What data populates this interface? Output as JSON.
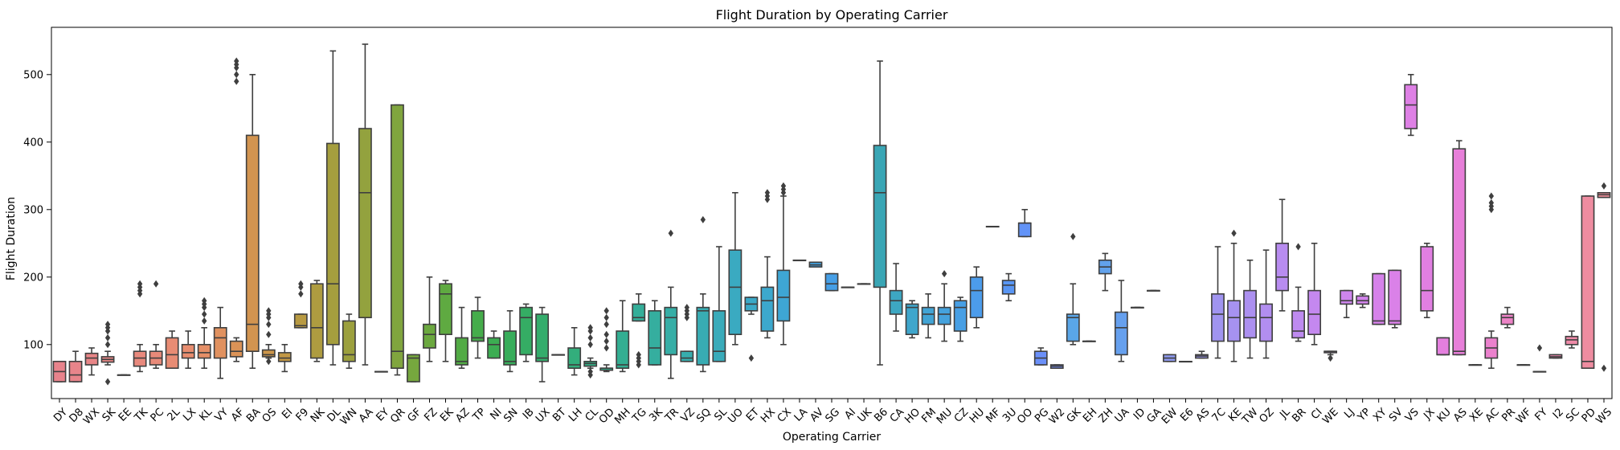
{
  "chart_data": {
    "type": "box",
    "title": "Flight Duration by Operating Carrier",
    "xlabel": "Operating Carrier",
    "ylabel": "Flight Duration",
    "ylim": [
      20,
      570
    ],
    "yticks": [
      100,
      200,
      300,
      400,
      500
    ],
    "grid": false,
    "legend": "none",
    "boxes": [
      {
        "cat": "DY",
        "min": 45,
        "q1": 45,
        "med": 60,
        "q3": 75,
        "max": 75,
        "fliers": [],
        "color": "#e8838c"
      },
      {
        "cat": "D8",
        "min": 45,
        "q1": 45,
        "med": 55,
        "q3": 75,
        "max": 90,
        "fliers": [],
        "color": "#e8848a"
      },
      {
        "cat": "WX",
        "min": 55,
        "q1": 70,
        "med": 80,
        "q3": 87,
        "max": 95,
        "fliers": [],
        "color": "#e88587"
      },
      {
        "cat": "SK",
        "min": 70,
        "q1": 74,
        "med": 78,
        "q3": 82,
        "max": 90,
        "fliers": [
          45,
          100,
          110,
          120,
          125,
          130
        ],
        "color": "#e88684"
      },
      {
        "cat": "EE",
        "min": 55,
        "q1": 55,
        "med": 55,
        "q3": 55,
        "max": 55,
        "fliers": [],
        "color": "#e88881"
      },
      {
        "cat": "TK",
        "min": 60,
        "q1": 68,
        "med": 80,
        "q3": 90,
        "max": 100,
        "fliers": [
          175,
          180,
          185,
          190
        ],
        "color": "#e8897d"
      },
      {
        "cat": "PC",
        "min": 65,
        "q1": 70,
        "med": 80,
        "q3": 90,
        "max": 100,
        "fliers": [
          190
        ],
        "color": "#e88a79"
      },
      {
        "cat": "2L",
        "min": 65,
        "q1": 65,
        "med": 85,
        "q3": 110,
        "max": 120,
        "fliers": [],
        "color": "#e88c74"
      },
      {
        "cat": "LX",
        "min": 65,
        "q1": 80,
        "med": 88,
        "q3": 100,
        "max": 120,
        "fliers": [],
        "color": "#e88d6f"
      },
      {
        "cat": "KL",
        "min": 65,
        "q1": 80,
        "med": 88,
        "q3": 100,
        "max": 125,
        "fliers": [
          135,
          145,
          155,
          160,
          165
        ],
        "color": "#e58f67"
      },
      {
        "cat": "VY",
        "min": 50,
        "q1": 80,
        "med": 110,
        "q3": 125,
        "max": 155,
        "fliers": [],
        "color": "#e0915f"
      },
      {
        "cat": "AF",
        "min": 75,
        "q1": 82,
        "med": 90,
        "q3": 105,
        "max": 110,
        "fliers": [
          490,
          500,
          510,
          515,
          520
        ],
        "color": "#db9357"
      },
      {
        "cat": "BA",
        "min": 65,
        "q1": 90,
        "med": 130,
        "q3": 410,
        "max": 500,
        "fliers": [],
        "color": "#d29450"
      },
      {
        "cat": "OS",
        "min": 80,
        "q1": 82,
        "med": 85,
        "q3": 92,
        "max": 100,
        "fliers": [
          75,
          115,
          130,
          140,
          145,
          150
        ],
        "color": "#cc964b"
      },
      {
        "cat": "EI",
        "min": 60,
        "q1": 75,
        "med": 80,
        "q3": 88,
        "max": 100,
        "fliers": [],
        "color": "#c29845"
      },
      {
        "cat": "F9",
        "min": 125,
        "q1": 125,
        "med": 128,
        "q3": 145,
        "max": 145,
        "fliers": [
          175,
          185,
          190
        ],
        "color": "#b89a42"
      },
      {
        "cat": "NK",
        "min": 75,
        "q1": 80,
        "med": 125,
        "q3": 190,
        "max": 195,
        "fliers": [],
        "color": "#ae9c40"
      },
      {
        "cat": "DL",
        "min": 70,
        "q1": 100,
        "med": 190,
        "q3": 398,
        "max": 535,
        "fliers": [],
        "color": "#a59e3e"
      },
      {
        "cat": "WN",
        "min": 65,
        "q1": 75,
        "med": 85,
        "q3": 135,
        "max": 145,
        "fliers": [],
        "color": "#9ca03e"
      },
      {
        "cat": "AA",
        "min": 70,
        "q1": 140,
        "med": 325,
        "q3": 420,
        "max": 545,
        "fliers": [],
        "color": "#93a23e"
      },
      {
        "cat": "EY",
        "min": 60,
        "q1": 60,
        "med": 60,
        "q3": 60,
        "max": 60,
        "fliers": [],
        "color": "#8aa43e"
      },
      {
        "cat": "QR",
        "min": 55,
        "q1": 65,
        "med": 90,
        "q3": 455,
        "max": 455,
        "fliers": [],
        "color": "#80a53e"
      },
      {
        "cat": "GF",
        "min": 45,
        "q1": 45,
        "med": 80,
        "q3": 85,
        "max": 85,
        "fliers": [],
        "color": "#76a73e"
      },
      {
        "cat": "FZ",
        "min": 75,
        "q1": 95,
        "med": 115,
        "q3": 130,
        "max": 200,
        "fliers": [],
        "color": "#6ba83f"
      },
      {
        "cat": "EK",
        "min": 75,
        "q1": 115,
        "med": 175,
        "q3": 190,
        "max": 195,
        "fliers": [],
        "color": "#5faa41"
      },
      {
        "cat": "AZ",
        "min": 65,
        "q1": 70,
        "med": 75,
        "q3": 110,
        "max": 155,
        "fliers": [],
        "color": "#52ab45"
      },
      {
        "cat": "TP",
        "min": 80,
        "q1": 105,
        "med": 110,
        "q3": 150,
        "max": 170,
        "fliers": [],
        "color": "#45ac4b"
      },
      {
        "cat": "NI",
        "min": 80,
        "q1": 80,
        "med": 100,
        "q3": 110,
        "max": 120,
        "fliers": [],
        "color": "#3cad52"
      },
      {
        "cat": "SN",
        "min": 60,
        "q1": 70,
        "med": 75,
        "q3": 120,
        "max": 150,
        "fliers": [],
        "color": "#38ad5b"
      },
      {
        "cat": "IB",
        "min": 75,
        "q1": 85,
        "med": 140,
        "q3": 155,
        "max": 160,
        "fliers": [],
        "color": "#35ad64"
      },
      {
        "cat": "UX",
        "min": 45,
        "q1": 75,
        "med": 80,
        "q3": 145,
        "max": 155,
        "fliers": [],
        "color": "#34ad6c"
      },
      {
        "cat": "BT",
        "min": 85,
        "q1": 85,
        "med": 85,
        "q3": 85,
        "max": 85,
        "fliers": [],
        "color": "#33ad74"
      },
      {
        "cat": "LH",
        "min": 55,
        "q1": 65,
        "med": 70,
        "q3": 95,
        "max": 125,
        "fliers": [],
        "color": "#33ae7c"
      },
      {
        "cat": "CL",
        "min": 65,
        "q1": 68,
        "med": 72,
        "q3": 75,
        "max": 80,
        "fliers": [
          55,
          60,
          100,
          110,
          120,
          125
        ],
        "color": "#33ae84"
      },
      {
        "cat": "OD",
        "min": 60,
        "q1": 62,
        "med": 65,
        "q3": 65,
        "max": 70,
        "fliers": [
          95,
          105,
          115,
          130,
          140,
          150
        ],
        "color": "#33ae8b"
      },
      {
        "cat": "MH",
        "min": 60,
        "q1": 65,
        "med": 70,
        "q3": 120,
        "max": 165,
        "fliers": [],
        "color": "#33ae92"
      },
      {
        "cat": "TG",
        "min": 135,
        "q1": 135,
        "med": 140,
        "q3": 160,
        "max": 175,
        "fliers": [
          70,
          75,
          80,
          85
        ],
        "color": "#34ae99"
      },
      {
        "cat": "3K",
        "min": 70,
        "q1": 70,
        "med": 95,
        "q3": 150,
        "max": 165,
        "fliers": [],
        "color": "#35ae9f"
      },
      {
        "cat": "TR",
        "min": 50,
        "q1": 85,
        "med": 140,
        "q3": 155,
        "max": 185,
        "fliers": [
          265
        ],
        "color": "#36aea6"
      },
      {
        "cat": "VZ",
        "min": 75,
        "q1": 75,
        "med": 80,
        "q3": 90,
        "max": 90,
        "fliers": [
          140,
          145,
          150,
          155
        ],
        "color": "#37adad"
      },
      {
        "cat": "SQ",
        "min": 60,
        "q1": 70,
        "med": 150,
        "q3": 155,
        "max": 175,
        "fliers": [
          285
        ],
        "color": "#38acb3"
      },
      {
        "cat": "SL",
        "min": 75,
        "q1": 75,
        "med": 90,
        "q3": 150,
        "max": 245,
        "fliers": [],
        "color": "#39abba"
      },
      {
        "cat": "UO",
        "min": 100,
        "q1": 115,
        "med": 185,
        "q3": 240,
        "max": 325,
        "fliers": [],
        "color": "#3aaac1"
      },
      {
        "cat": "ET",
        "min": 145,
        "q1": 150,
        "med": 160,
        "q3": 170,
        "max": 170,
        "fliers": [
          80
        ],
        "color": "#3ba9c7"
      },
      {
        "cat": "HX",
        "min": 110,
        "q1": 120,
        "med": 165,
        "q3": 185,
        "max": 230,
        "fliers": [
          315,
          320,
          325
        ],
        "color": "#3ca8cd"
      },
      {
        "cat": "CX",
        "min": 100,
        "q1": 135,
        "med": 170,
        "q3": 210,
        "max": 320,
        "fliers": [
          325,
          330,
          335
        ],
        "color": "#3ea6d4"
      },
      {
        "cat": "LA",
        "min": 225,
        "q1": 225,
        "med": 225,
        "q3": 225,
        "max": 225,
        "fliers": [],
        "color": "#40a4da"
      },
      {
        "cat": "AV",
        "min": 215,
        "q1": 215,
        "med": 218,
        "q3": 222,
        "max": 222,
        "fliers": [],
        "color": "#43a2e0"
      },
      {
        "cat": "SG",
        "min": 180,
        "q1": 180,
        "med": 190,
        "q3": 205,
        "max": 205,
        "fliers": [],
        "color": "#469fe6"
      },
      {
        "cat": "AI",
        "min": 185,
        "q1": 185,
        "med": 185,
        "q3": 185,
        "max": 185,
        "fliers": [],
        "color": "#4a9ceb"
      },
      {
        "cat": "UK",
        "min": 190,
        "q1": 190,
        "med": 190,
        "q3": 190,
        "max": 190,
        "fliers": [],
        "color": "#4e99f0"
      },
      {
        "cat": "B6",
        "min": 70,
        "q1": 185,
        "med": 325,
        "q3": 395,
        "max": 520,
        "fliers": [],
        "color": "#3aa6b5"
      },
      {
        "cat": "CA",
        "min": 120,
        "q1": 145,
        "med": 165,
        "q3": 180,
        "max": 220,
        "fliers": [],
        "color": "#3da7c2"
      },
      {
        "cat": "HO",
        "min": 110,
        "q1": 115,
        "med": 155,
        "q3": 160,
        "max": 165,
        "fliers": [],
        "color": "#3fa6cc"
      },
      {
        "cat": "FM",
        "min": 110,
        "q1": 130,
        "med": 145,
        "q3": 155,
        "max": 175,
        "fliers": [],
        "color": "#42a4d5"
      },
      {
        "cat": "MU",
        "min": 105,
        "q1": 130,
        "med": 145,
        "q3": 155,
        "max": 190,
        "fliers": [
          205
        ],
        "color": "#45a2dd"
      },
      {
        "cat": "CZ",
        "min": 105,
        "q1": 120,
        "med": 155,
        "q3": 165,
        "max": 170,
        "fliers": [],
        "color": "#489fe4"
      },
      {
        "cat": "HU",
        "min": 125,
        "q1": 140,
        "med": 180,
        "q3": 200,
        "max": 215,
        "fliers": [],
        "color": "#4c9ceb"
      },
      {
        "cat": "MF",
        "min": 275,
        "q1": 275,
        "med": 275,
        "q3": 275,
        "max": 275,
        "fliers": [],
        "color": "#5199f0"
      },
      {
        "cat": "3U",
        "min": 165,
        "q1": 175,
        "med": 188,
        "q3": 195,
        "max": 205,
        "fliers": [],
        "color": "#5996f4"
      },
      {
        "cat": "OO",
        "min": 260,
        "q1": 260,
        "med": 280,
        "q3": 280,
        "max": 300,
        "fliers": [],
        "color": "#6293f7"
      },
      {
        "cat": "PG",
        "min": 70,
        "q1": 70,
        "med": 80,
        "q3": 90,
        "max": 95,
        "fliers": [],
        "color": "#6b90f9"
      },
      {
        "cat": "W2",
        "min": 65,
        "q1": 65,
        "med": 68,
        "q3": 70,
        "max": 70,
        "fliers": [],
        "color": "#758dfa"
      },
      {
        "cat": "GK",
        "min": 100,
        "q1": 105,
        "med": 140,
        "q3": 145,
        "max": 190,
        "fliers": [
          260
        ],
        "color": "#5aa6e8"
      },
      {
        "cat": "EH",
        "min": 105,
        "q1": 105,
        "med": 105,
        "q3": 105,
        "max": 105,
        "fliers": [],
        "color": "#5ea4ea"
      },
      {
        "cat": "ZH",
        "min": 180,
        "q1": 205,
        "med": 215,
        "q3": 225,
        "max": 235,
        "fliers": [],
        "color": "#62a2ec"
      },
      {
        "cat": "UA",
        "min": 75,
        "q1": 85,
        "med": 125,
        "q3": 148,
        "max": 195,
        "fliers": [],
        "color": "#66a0ee"
      },
      {
        "cat": "ID",
        "min": 155,
        "q1": 155,
        "med": 155,
        "q3": 155,
        "max": 155,
        "fliers": [],
        "color": "#6b9ef0"
      },
      {
        "cat": "GA",
        "min": 180,
        "q1": 180,
        "med": 180,
        "q3": 180,
        "max": 180,
        "fliers": [],
        "color": "#709cf1"
      },
      {
        "cat": "EW",
        "min": 75,
        "q1": 75,
        "med": 80,
        "q3": 85,
        "max": 85,
        "fliers": [],
        "color": "#8f9af0"
      },
      {
        "cat": "E6",
        "min": 75,
        "q1": 75,
        "med": 75,
        "q3": 75,
        "max": 75,
        "fliers": [],
        "color": "#9498f0"
      },
      {
        "cat": "AS",
        "min": 80,
        "q1": 80,
        "med": 83,
        "q3": 85,
        "max": 90,
        "fliers": [],
        "color": "#9a96f0"
      },
      {
        "cat": "7C",
        "min": 80,
        "q1": 105,
        "med": 145,
        "q3": 175,
        "max": 245,
        "fliers": [],
        "color": "#a094f0"
      },
      {
        "cat": "KE",
        "min": 75,
        "q1": 105,
        "med": 140,
        "q3": 165,
        "max": 250,
        "fliers": [
          265
        ],
        "color": "#a692f0"
      },
      {
        "cat": "TW",
        "min": 80,
        "q1": 110,
        "med": 140,
        "q3": 180,
        "max": 225,
        "fliers": [],
        "color": "#ac90f0"
      },
      {
        "cat": "OZ",
        "min": 80,
        "q1": 105,
        "med": 140,
        "q3": 160,
        "max": 240,
        "fliers": [],
        "color": "#b28ef0"
      },
      {
        "cat": "JL",
        "min": 150,
        "q1": 180,
        "med": 200,
        "q3": 250,
        "max": 315,
        "fliers": [],
        "color": "#b88cf0"
      },
      {
        "cat": "BR",
        "min": 105,
        "q1": 110,
        "med": 120,
        "q3": 150,
        "max": 185,
        "fliers": [
          245
        ],
        "color": "#be8af0"
      },
      {
        "cat": "CI",
        "min": 100,
        "q1": 115,
        "med": 145,
        "q3": 180,
        "max": 250,
        "fliers": [],
        "color": "#c488ef"
      },
      {
        "cat": "WE",
        "min": 85,
        "q1": 88,
        "med": 90,
        "q3": 90,
        "max": 90,
        "fliers": [
          80
        ],
        "color": "#c986ee"
      },
      {
        "cat": "LJ",
        "min": 140,
        "q1": 160,
        "med": 165,
        "q3": 180,
        "max": 180,
        "fliers": [],
        "color": "#ce85ed"
      },
      {
        "cat": "YP",
        "min": 155,
        "q1": 160,
        "med": 165,
        "q3": 172,
        "max": 175,
        "fliers": [],
        "color": "#d283ec"
      },
      {
        "cat": "XY",
        "min": 130,
        "q1": 130,
        "med": 135,
        "q3": 205,
        "max": 205,
        "fliers": [],
        "color": "#d682ea"
      },
      {
        "cat": "SV",
        "min": 125,
        "q1": 130,
        "med": 135,
        "q3": 210,
        "max": 210,
        "fliers": [],
        "color": "#da81e8"
      },
      {
        "cat": "VS",
        "min": 410,
        "q1": 420,
        "med": 455,
        "q3": 485,
        "max": 500,
        "fliers": [],
        "color": "#de80e5"
      },
      {
        "cat": "JX",
        "min": 140,
        "q1": 150,
        "med": 180,
        "q3": 245,
        "max": 250,
        "fliers": [],
        "color": "#e17fe2"
      },
      {
        "cat": "KU",
        "min": 85,
        "q1": 85,
        "med": 85,
        "q3": 110,
        "max": 110,
        "fliers": [],
        "color": "#e47fde"
      },
      {
        "cat": "AS",
        "min": 85,
        "q1": 85,
        "med": 90,
        "q3": 390,
        "max": 402,
        "fliers": [],
        "color": "#e77fd9"
      },
      {
        "cat": "XE",
        "min": 70,
        "q1": 70,
        "med": 70,
        "q3": 70,
        "max": 70,
        "fliers": [],
        "color": "#e980d3"
      },
      {
        "cat": "AC",
        "min": 65,
        "q1": 80,
        "med": 95,
        "q3": 110,
        "max": 120,
        "fliers": [
          300,
          305,
          310,
          320
        ],
        "color": "#eb81cd"
      },
      {
        "cat": "PR",
        "min": 125,
        "q1": 130,
        "med": 140,
        "q3": 145,
        "max": 155,
        "fliers": [],
        "color": "#ec83c6"
      },
      {
        "cat": "WF",
        "min": 70,
        "q1": 70,
        "med": 70,
        "q3": 70,
        "max": 70,
        "fliers": [],
        "color": "#ed84bf"
      },
      {
        "cat": "FY",
        "min": 60,
        "q1": 60,
        "med": 60,
        "q3": 60,
        "max": 60,
        "fliers": [
          95
        ],
        "color": "#ee86b8"
      },
      {
        "cat": "I2",
        "min": 80,
        "q1": 80,
        "med": 82,
        "q3": 85,
        "max": 85,
        "fliers": [],
        "color": "#ee88b0"
      },
      {
        "cat": "SC",
        "min": 95,
        "q1": 100,
        "med": 107,
        "q3": 112,
        "max": 120,
        "fliers": [],
        "color": "#ee8aa8"
      },
      {
        "cat": "PD",
        "min": 65,
        "q1": 65,
        "med": 75,
        "q3": 320,
        "max": 320,
        "fliers": [],
        "color": "#ee8ca0"
      },
      {
        "cat": "WS",
        "min": 318,
        "q1": 318,
        "med": 322,
        "q3": 325,
        "max": 325,
        "fliers": [
          65,
          335
        ],
        "color": "#ed8e98"
      }
    ]
  }
}
